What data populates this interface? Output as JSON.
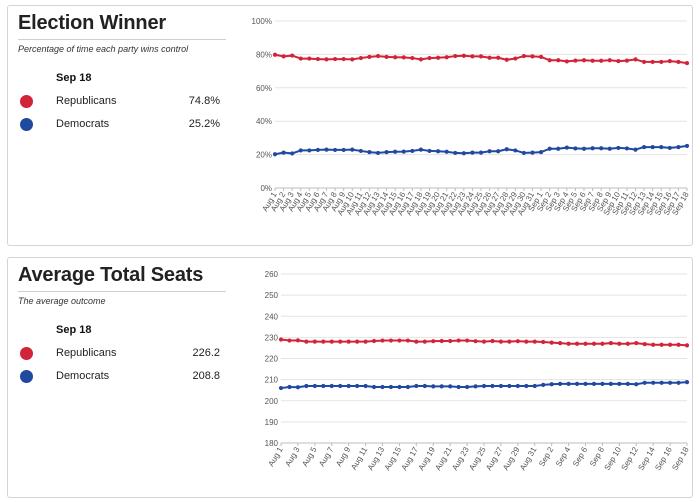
{
  "panels": [
    {
      "title": "Election Winner",
      "subtitle": "Percentage of time each party wins control",
      "date": "Sep 18",
      "items": [
        {
          "label": "Republicans",
          "value": "74.8%"
        },
        {
          "label": "Democrats",
          "value": "25.2%"
        }
      ]
    },
    {
      "title": "Average Total Seats",
      "subtitle": "The average outcome",
      "date": "Sep 18",
      "items": [
        {
          "label": "Republicans",
          "value": "226.2"
        },
        {
          "label": "Democrats",
          "value": "208.8"
        }
      ]
    }
  ],
  "colors": {
    "republicans": "#d3233a",
    "democrats": "#1f4aa0",
    "grid": "#e3e3e3"
  },
  "chart_data": [
    {
      "type": "line",
      "x": [
        "Aug 1",
        "Aug 2",
        "Aug 3",
        "Aug 4",
        "Aug 5",
        "Aug 6",
        "Aug 7",
        "Aug 8",
        "Aug 9",
        "Aug 10",
        "Aug 11",
        "Aug 12",
        "Aug 13",
        "Aug 14",
        "Aug 15",
        "Aug 16",
        "Aug 17",
        "Aug 18",
        "Aug 19",
        "Aug 20",
        "Aug 21",
        "Aug 22",
        "Aug 23",
        "Aug 24",
        "Aug 25",
        "Aug 26",
        "Aug 27",
        "Aug 28",
        "Aug 29",
        "Aug 30",
        "Aug 31",
        "Sep 1",
        "Sep 2",
        "Sep 3",
        "Sep 4",
        "Sep 5",
        "Sep 6",
        "Sep 7",
        "Sep 8",
        "Sep 9",
        "Sep 10",
        "Sep 11",
        "Sep 12",
        "Sep 13",
        "Sep 14",
        "Sep 15",
        "Sep 16",
        "Sep 17",
        "Sep 18"
      ],
      "x_tick_labels": [
        "Aug 1",
        "Aug 2",
        "Aug 3",
        "Aug 4",
        "Aug 5",
        "Aug 6",
        "Aug 7",
        "Aug 8",
        "Aug 9",
        "Aug 10",
        "Aug 11",
        "Aug 12",
        "Aug 13",
        "Aug 14",
        "Aug 15",
        "Aug 16",
        "Aug 17",
        "Aug 18",
        "Aug 19",
        "Aug 20",
        "Aug 21",
        "Aug 22",
        "Aug 23",
        "Aug 24",
        "Aug 25",
        "Aug 26",
        "Aug 27",
        "Aug 28",
        "Aug 29",
        "Aug 30",
        "Aug 31",
        "Sep 1",
        "Sep 2",
        "Sep 3",
        "Sep 4",
        "Sep 5",
        "Sep 6",
        "Sep 7",
        "Sep 8",
        "Sep 9",
        "Sep 10",
        "Sep 11",
        "Sep 12",
        "Sep 13",
        "Sep 14",
        "Sep 15",
        "Sep 16",
        "Sep 17",
        "Sep 18"
      ],
      "series": [
        {
          "name": "Republicans",
          "color": "#d3233a",
          "values": [
            79.8,
            78.8,
            79.3,
            77.5,
            77.5,
            77.2,
            77.0,
            77.2,
            77.2,
            77.0,
            77.8,
            78.5,
            79.0,
            78.5,
            78.3,
            78.2,
            77.8,
            77.0,
            77.8,
            78.0,
            78.3,
            79.0,
            79.2,
            78.8,
            78.8,
            78.0,
            78.0,
            76.8,
            77.5,
            79.0,
            78.8,
            78.5,
            76.5,
            76.5,
            75.8,
            76.3,
            76.5,
            76.2,
            76.2,
            76.5,
            76.0,
            76.3,
            77.0,
            75.5,
            75.5,
            75.5,
            76.0,
            75.5,
            74.8
          ]
        },
        {
          "name": "Democrats",
          "color": "#1f4aa0",
          "values": [
            20.2,
            21.2,
            20.7,
            22.5,
            22.5,
            22.8,
            23.0,
            22.8,
            22.8,
            23.0,
            22.2,
            21.5,
            21.0,
            21.5,
            21.7,
            21.8,
            22.2,
            23.0,
            22.2,
            22.0,
            21.7,
            21.0,
            20.8,
            21.2,
            21.2,
            22.0,
            22.0,
            23.2,
            22.5,
            21.0,
            21.2,
            21.5,
            23.5,
            23.5,
            24.2,
            23.7,
            23.5,
            23.8,
            23.8,
            23.5,
            24.0,
            23.7,
            23.0,
            24.5,
            24.5,
            24.5,
            24.0,
            24.5,
            25.2
          ]
        }
      ],
      "y_ticks": [
        "0%",
        "20%",
        "40%",
        "60%",
        "80%",
        "100%"
      ],
      "ylim": [
        0,
        100
      ],
      "grid": true
    },
    {
      "type": "line",
      "x": [
        "Aug 1",
        "Aug 2",
        "Aug 3",
        "Aug 4",
        "Aug 5",
        "Aug 6",
        "Aug 7",
        "Aug 8",
        "Aug 9",
        "Aug 10",
        "Aug 11",
        "Aug 12",
        "Aug 13",
        "Aug 14",
        "Aug 15",
        "Aug 16",
        "Aug 17",
        "Aug 18",
        "Aug 19",
        "Aug 20",
        "Aug 21",
        "Aug 22",
        "Aug 23",
        "Aug 24",
        "Aug 25",
        "Aug 26",
        "Aug 27",
        "Aug 28",
        "Aug 29",
        "Aug 30",
        "Aug 31",
        "Sep 1",
        "Sep 2",
        "Sep 3",
        "Sep 4",
        "Sep 5",
        "Sep 6",
        "Sep 7",
        "Sep 8",
        "Sep 9",
        "Sep 10",
        "Sep 11",
        "Sep 12",
        "Sep 13",
        "Sep 14",
        "Sep 15",
        "Sep 16",
        "Sep 17",
        "Sep 18"
      ],
      "x_tick_labels": [
        "Aug 1",
        "Aug 3",
        "Aug 5",
        "Aug 7",
        "Aug 9",
        "Aug 11",
        "Aug 13",
        "Aug 15",
        "Aug 17",
        "Aug 19",
        "Aug 21",
        "Aug 23",
        "Aug 25",
        "Aug 27",
        "Aug 29",
        "Aug 31",
        "Sep 2",
        "Sep 4",
        "Sep 6",
        "Sep 8",
        "Sep 10",
        "Sep 12",
        "Sep 14",
        "Sep 16",
        "Sep 18"
      ],
      "series": [
        {
          "name": "Republicans",
          "color": "#d3233a",
          "values": [
            229.0,
            228.5,
            228.6,
            228.0,
            228.0,
            228.0,
            228.0,
            228.0,
            228.0,
            228.0,
            228.0,
            228.3,
            228.5,
            228.5,
            228.5,
            228.5,
            228.0,
            228.0,
            228.2,
            228.3,
            228.3,
            228.5,
            228.5,
            228.2,
            228.0,
            228.3,
            228.0,
            228.0,
            228.2,
            228.0,
            228.0,
            227.8,
            227.5,
            227.3,
            227.0,
            227.0,
            227.0,
            227.0,
            227.0,
            227.3,
            227.0,
            227.0,
            227.3,
            226.8,
            226.5,
            226.5,
            226.5,
            226.5,
            226.2
          ]
        },
        {
          "name": "Democrats",
          "color": "#1f4aa0",
          "values": [
            206.0,
            206.5,
            206.4,
            207.0,
            207.0,
            207.0,
            207.0,
            207.0,
            207.0,
            207.0,
            207.0,
            206.5,
            206.5,
            206.5,
            206.5,
            206.5,
            207.0,
            207.0,
            206.8,
            206.8,
            206.8,
            206.5,
            206.5,
            206.8,
            207.0,
            207.0,
            207.0,
            207.0,
            207.0,
            207.0,
            207.0,
            207.5,
            207.8,
            208.0,
            208.0,
            208.0,
            208.0,
            208.0,
            208.0,
            208.0,
            208.0,
            208.0,
            207.8,
            208.5,
            208.5,
            208.5,
            208.5,
            208.5,
            208.8
          ]
        }
      ],
      "y_ticks": [
        "180",
        "190",
        "200",
        "210",
        "220",
        "230",
        "240",
        "250",
        "260"
      ],
      "ylim": [
        180,
        260
      ],
      "grid": true
    }
  ]
}
